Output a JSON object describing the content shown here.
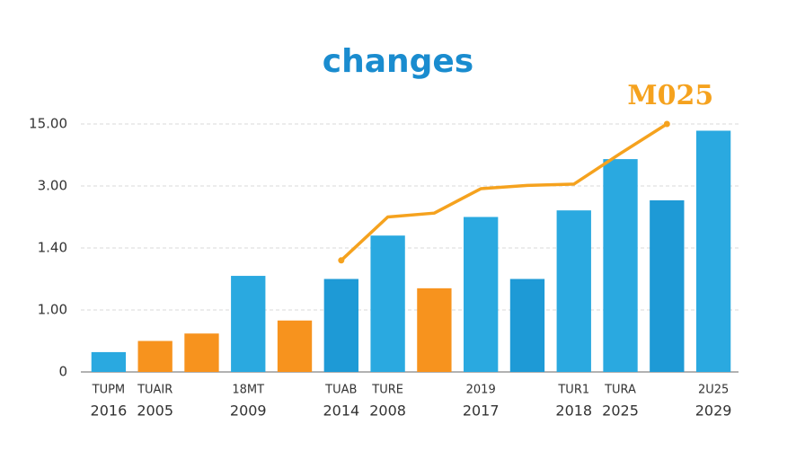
{
  "chart_data": {
    "type": "bar",
    "title": "changes",
    "annotation": "M025",
    "categories": [
      [
        "TUPM",
        "2016"
      ],
      [
        "TUAIR",
        "2005"
      ],
      null,
      [
        "18MT",
        "2009"
      ],
      null,
      [
        "TUAB",
        "2014"
      ],
      [
        "TURE",
        "2008"
      ],
      null,
      [
        "2019",
        "2017"
      ],
      null,
      [
        "TUR1",
        "2018"
      ],
      [
        "TURA",
        "2025"
      ],
      null,
      [
        "2U25",
        "2029"
      ]
    ],
    "series": [
      {
        "type": "bar",
        "colors": [
          "#2aa9e0",
          "#f7931e",
          "#f7931e",
          "#2aa9e0",
          "#f7931e",
          "#1e9ad6",
          "#2aa9e0",
          "#f7931e",
          "#2aa9e0",
          "#1e9ad6",
          "#2aa9e0",
          "#2aa9e0",
          "#1e9ad6",
          "#2aa9e0"
        ],
        "values": [
          0.32,
          0.5,
          0.62,
          1.22,
          0.83,
          1.2,
          1.72,
          1.14,
          2.2,
          1.2,
          2.37,
          8.2,
          2.63,
          13.7
        ]
      },
      {
        "type": "line",
        "color": "#f5a21e",
        "values": [
          null,
          null,
          null,
          null,
          null,
          1.32,
          2.2,
          2.3,
          2.93,
          3.1,
          3.36,
          9.3,
          15,
          null
        ]
      }
    ],
    "ylim": [
      0,
      15
    ],
    "yticks": [
      0,
      {
        "value": 1,
        "label": "1.00"
      },
      {
        "value": 1.4,
        "label": "1.40"
      },
      {
        "value": 3,
        "label": "3.00"
      },
      {
        "value": 15,
        "label": "15.00"
      }
    ],
    "grid": true
  }
}
